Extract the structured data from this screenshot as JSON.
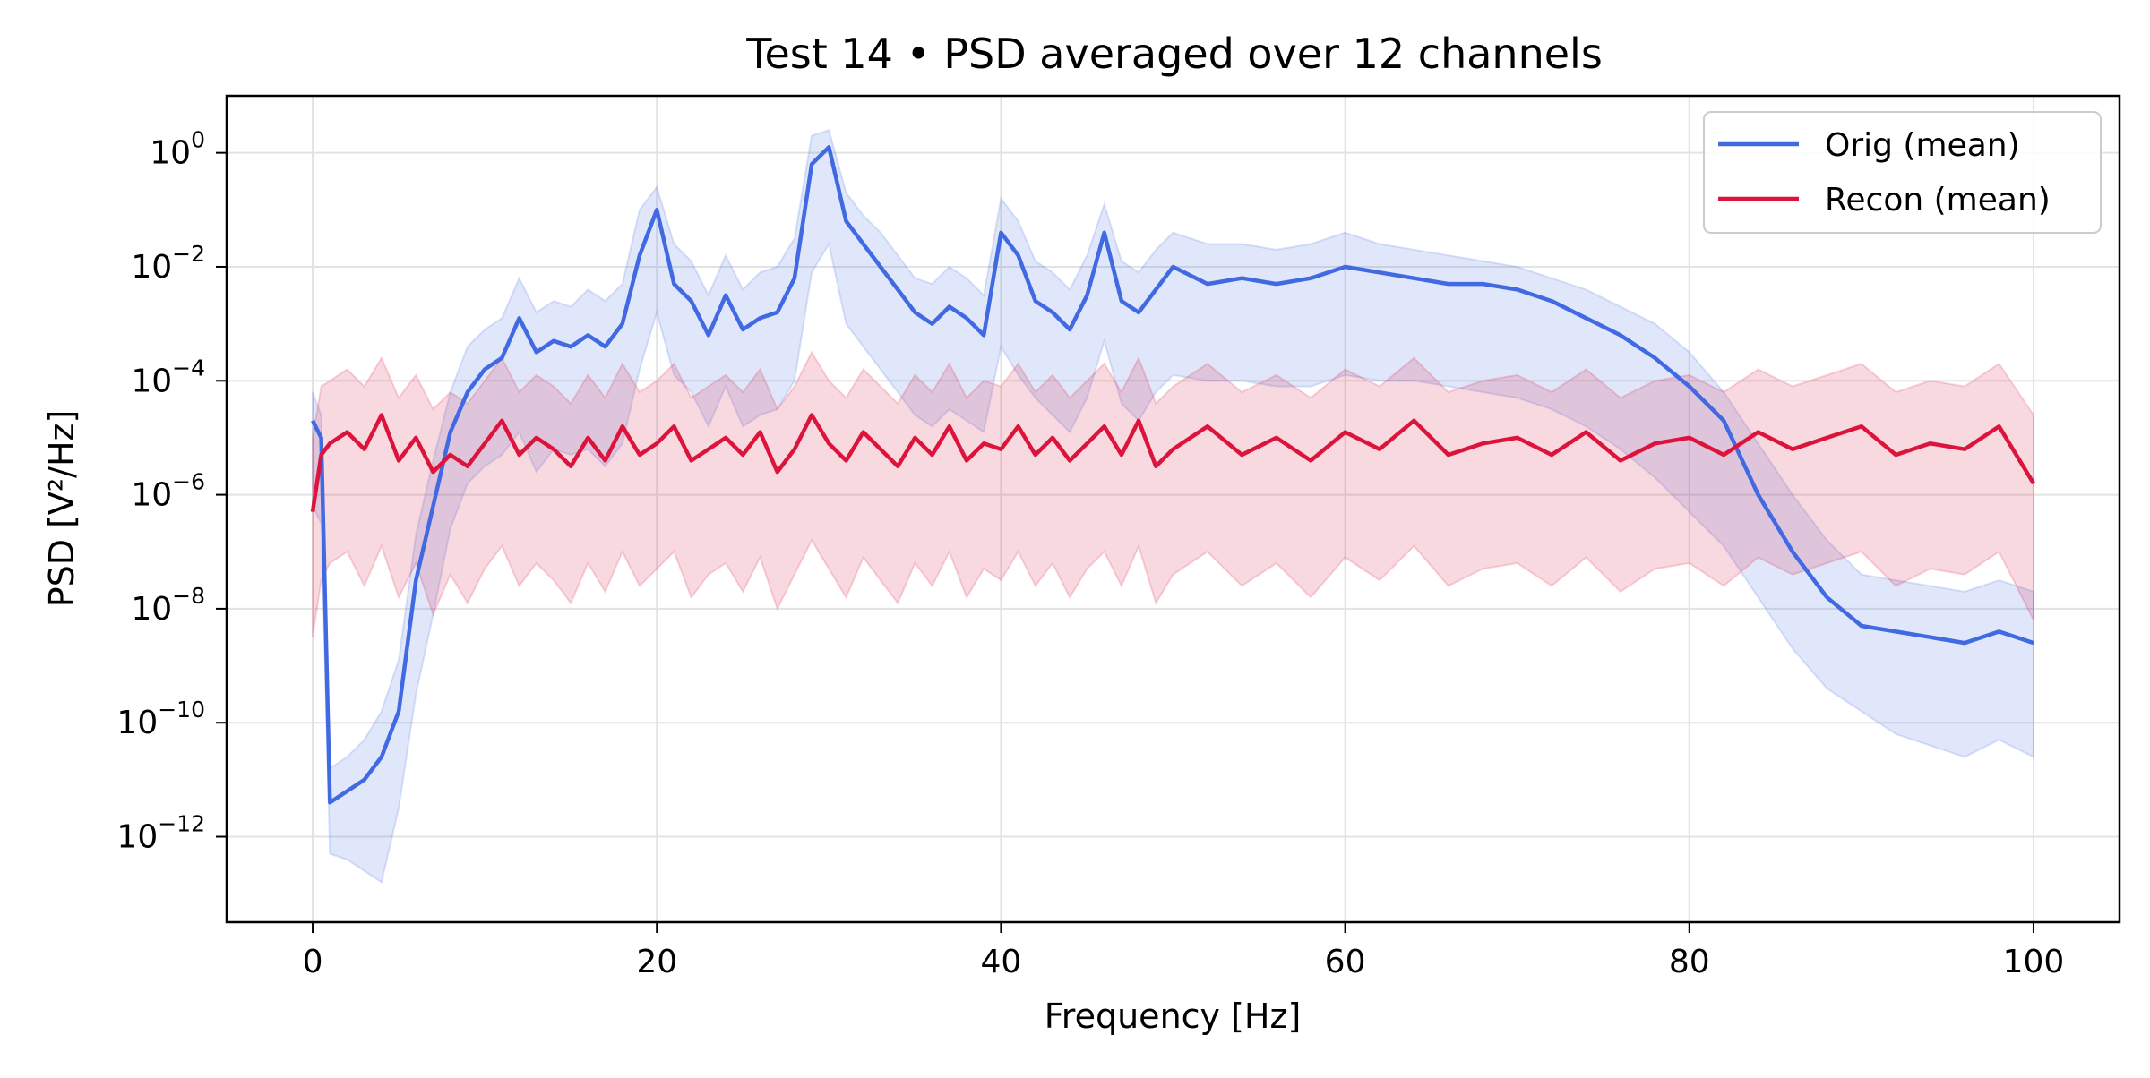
{
  "chart_data": {
    "type": "line",
    "title": "Test 14 • PSD averaged over 12 channels",
    "xlabel": "Frequency [Hz]",
    "ylabel": "PSD [V²/Hz]",
    "xlim": [
      -5,
      105
    ],
    "ylim_log10": [
      -13.5,
      1
    ],
    "yscale": "log",
    "grid": true,
    "legend_position": "top-right",
    "x_ticks": [
      0,
      20,
      40,
      60,
      80,
      100
    ],
    "y_ticks": [
      {
        "base": "10",
        "exp": "0"
      },
      {
        "base": "10",
        "exp": "−2"
      },
      {
        "base": "10",
        "exp": "−4"
      },
      {
        "base": "10",
        "exp": "−6"
      },
      {
        "base": "10",
        "exp": "−8"
      },
      {
        "base": "10",
        "exp": "−10"
      },
      {
        "base": "10",
        "exp": "−12"
      }
    ],
    "x": [
      0,
      0.5,
      1,
      2,
      3,
      4,
      5,
      6,
      7,
      8,
      9,
      10,
      11,
      12,
      13,
      14,
      15,
      16,
      17,
      18,
      19,
      20,
      21,
      22,
      23,
      24,
      25,
      26,
      27,
      28,
      29,
      30,
      31,
      32,
      33,
      34,
      35,
      36,
      37,
      38,
      39,
      40,
      41,
      42,
      43,
      44,
      45,
      46,
      47,
      48,
      49,
      50,
      52,
      54,
      56,
      58,
      60,
      62,
      64,
      66,
      68,
      70,
      72,
      74,
      76,
      78,
      80,
      82,
      84,
      86,
      88,
      90,
      92,
      94,
      96,
      98,
      100
    ],
    "series": [
      {
        "name": "Orig (mean)",
        "color": "#4169e1",
        "values_log10": [
          -4.7,
          -5,
          -11.4,
          -11.2,
          -11,
          -10.6,
          -9.8,
          -7.5,
          -6.2,
          -4.9,
          -4.2,
          -3.8,
          -3.6,
          -2.9,
          -3.5,
          -3.3,
          -3.4,
          -3.2,
          -3.4,
          -3.0,
          -1.8,
          -1.0,
          -2.3,
          -2.6,
          -3.2,
          -2.5,
          -3.1,
          -2.9,
          -2.8,
          -2.2,
          -0.2,
          0.1,
          -1.2,
          -1.6,
          -2.0,
          -2.4,
          -2.8,
          -3.0,
          -2.7,
          -2.9,
          -3.2,
          -1.4,
          -1.8,
          -2.6,
          -2.8,
          -3.1,
          -2.5,
          -1.4,
          -2.6,
          -2.8,
          -2.4,
          -2.0,
          -2.3,
          -2.2,
          -2.3,
          -2.2,
          -2.0,
          -2.1,
          -2.2,
          -2.3,
          -2.3,
          -2.4,
          -2.6,
          -2.9,
          -3.2,
          -3.6,
          -4.1,
          -4.7,
          -6.0,
          -7.0,
          -7.8,
          -8.3,
          -8.4,
          -8.5,
          -8.6,
          -8.4,
          -8.6
        ],
        "band_upper_log10": [
          -4.2,
          -4.6,
          -10.8,
          -10.6,
          -10.3,
          -9.8,
          -8.9,
          -6.7,
          -5.4,
          -4.2,
          -3.4,
          -3.1,
          -2.9,
          -2.2,
          -2.8,
          -2.6,
          -2.7,
          -2.4,
          -2.6,
          -2.3,
          -1.0,
          -0.6,
          -1.6,
          -1.9,
          -2.5,
          -1.8,
          -2.4,
          -2.1,
          -2.0,
          -1.5,
          0.3,
          0.4,
          -0.7,
          -1.1,
          -1.4,
          -1.8,
          -2.2,
          -2.3,
          -2.0,
          -2.2,
          -2.5,
          -0.8,
          -1.2,
          -1.9,
          -2.1,
          -2.4,
          -1.8,
          -0.9,
          -1.9,
          -2.1,
          -1.7,
          -1.4,
          -1.6,
          -1.6,
          -1.7,
          -1.6,
          -1.4,
          -1.6,
          -1.7,
          -1.8,
          -1.9,
          -2.0,
          -2.2,
          -2.4,
          -2.7,
          -3.0,
          -3.5,
          -4.2,
          -5.1,
          -6.0,
          -6.8,
          -7.4,
          -7.5,
          -7.6,
          -7.7,
          -7.5,
          -7.7
        ],
        "band_lower_log10": [
          -6.2,
          -6.5,
          -12.3,
          -12.4,
          -12.6,
          -12.8,
          -11.5,
          -9.5,
          -8.1,
          -6.6,
          -5.8,
          -5.5,
          -5.3,
          -4.9,
          -5.6,
          -5.2,
          -5.3,
          -5.2,
          -5.5,
          -5.1,
          -3.8,
          -2.8,
          -3.9,
          -4.2,
          -4.8,
          -4.1,
          -4.8,
          -4.6,
          -4.5,
          -4.0,
          -2.1,
          -1.6,
          -3.0,
          -3.4,
          -3.8,
          -4.2,
          -4.6,
          -4.8,
          -4.5,
          -4.7,
          -4.9,
          -3.4,
          -3.9,
          -4.3,
          -4.6,
          -4.9,
          -4.3,
          -3.3,
          -4.4,
          -4.7,
          -4.2,
          -3.9,
          -4.0,
          -4.0,
          -4.1,
          -4.1,
          -3.9,
          -4.0,
          -4.0,
          -4.1,
          -4.2,
          -4.3,
          -4.5,
          -4.8,
          -5.2,
          -5.7,
          -6.3,
          -6.9,
          -7.8,
          -8.7,
          -9.4,
          -9.8,
          -10.2,
          -10.4,
          -10.6,
          -10.3,
          -10.6
        ]
      },
      {
        "name": "Recon (mean)",
        "color": "#dc143c",
        "values_log10": [
          -6.3,
          -5.3,
          -5.1,
          -4.9,
          -5.2,
          -4.6,
          -5.4,
          -5.0,
          -5.6,
          -5.3,
          -5.5,
          -5.1,
          -4.7,
          -5.3,
          -5.0,
          -5.2,
          -5.5,
          -5.0,
          -5.4,
          -4.8,
          -5.3,
          -5.1,
          -4.8,
          -5.4,
          -5.2,
          -5.0,
          -5.3,
          -4.9,
          -5.6,
          -5.2,
          -4.6,
          -5.1,
          -5.4,
          -4.9,
          -5.2,
          -5.5,
          -5.0,
          -5.3,
          -4.8,
          -5.4,
          -5.1,
          -5.2,
          -4.8,
          -5.3,
          -5.0,
          -5.4,
          -5.1,
          -4.8,
          -5.3,
          -4.7,
          -5.5,
          -5.2,
          -4.8,
          -5.3,
          -5.0,
          -5.4,
          -4.9,
          -5.2,
          -4.7,
          -5.3,
          -5.1,
          -5.0,
          -5.3,
          -4.9,
          -5.4,
          -5.1,
          -5.0,
          -5.3,
          -4.9,
          -5.2,
          -5.0,
          -4.8,
          -5.3,
          -5.1,
          -5.2,
          -4.8,
          -5.8
        ],
        "band_upper_log10": [
          -5.0,
          -4.1,
          -4.0,
          -3.8,
          -4.1,
          -3.6,
          -4.3,
          -3.9,
          -4.5,
          -4.2,
          -4.4,
          -4.0,
          -3.6,
          -4.2,
          -3.9,
          -4.1,
          -4.4,
          -3.9,
          -4.3,
          -3.7,
          -4.2,
          -4.0,
          -3.7,
          -4.3,
          -4.1,
          -3.9,
          -4.2,
          -3.8,
          -4.5,
          -4.1,
          -3.5,
          -4.0,
          -4.3,
          -3.8,
          -4.1,
          -4.4,
          -3.9,
          -4.2,
          -3.7,
          -4.3,
          -4.0,
          -4.1,
          -3.7,
          -4.2,
          -3.9,
          -4.3,
          -4.0,
          -3.7,
          -4.2,
          -3.6,
          -4.4,
          -4.1,
          -3.7,
          -4.2,
          -3.9,
          -4.3,
          -3.8,
          -4.1,
          -3.6,
          -4.2,
          -4.0,
          -3.9,
          -4.2,
          -3.8,
          -4.3,
          -4.0,
          -3.9,
          -4.2,
          -3.8,
          -4.1,
          -3.9,
          -3.7,
          -4.2,
          -4.0,
          -4.1,
          -3.7,
          -4.6
        ],
        "band_lower_log10": [
          -8.5,
          -7.5,
          -7.2,
          -7.0,
          -7.6,
          -6.9,
          -7.8,
          -7.2,
          -8.1,
          -7.4,
          -7.9,
          -7.3,
          -6.9,
          -7.6,
          -7.2,
          -7.5,
          -7.9,
          -7.2,
          -7.7,
          -7.0,
          -7.6,
          -7.3,
          -7.0,
          -7.8,
          -7.4,
          -7.2,
          -7.7,
          -7.1,
          -8.0,
          -7.4,
          -6.8,
          -7.3,
          -7.8,
          -7.1,
          -7.5,
          -7.9,
          -7.2,
          -7.6,
          -7.0,
          -7.8,
          -7.3,
          -7.5,
          -7.0,
          -7.6,
          -7.2,
          -7.8,
          -7.3,
          -7.0,
          -7.6,
          -6.9,
          -7.9,
          -7.4,
          -7.0,
          -7.6,
          -7.2,
          -7.8,
          -7.1,
          -7.5,
          -6.9,
          -7.6,
          -7.3,
          -7.2,
          -7.6,
          -7.1,
          -7.7,
          -7.3,
          -7.2,
          -7.6,
          -7.1,
          -7.4,
          -7.2,
          -7.0,
          -7.6,
          -7.3,
          -7.4,
          -7.0,
          -8.2
        ]
      }
    ]
  }
}
